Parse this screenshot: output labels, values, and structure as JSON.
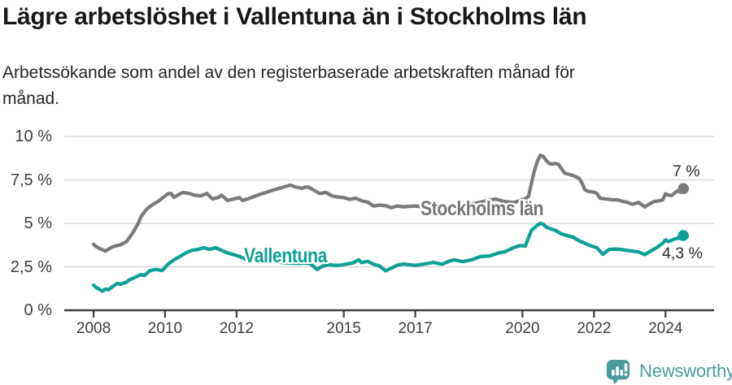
{
  "title": "Lägre arbetslöshet i Vallentuna än i Stockholms län",
  "subtitle": {
    "line1": "Arbetssökande som andel av den registerbaserade arbetskraften månad för",
    "line2": "månad."
  },
  "branding": {
    "logo_text": "Newsworthy",
    "logo_color": "#4a9c9c"
  },
  "chart_data": {
    "type": "line",
    "unit": "%",
    "x_axis": {
      "ticks": [
        2008,
        2010,
        2012,
        2015,
        2017,
        2020,
        2022,
        2024
      ],
      "range": [
        2007.18,
        2025.36
      ]
    },
    "y_axis": {
      "ticks": [
        0,
        2.5,
        5,
        7.5,
        10
      ],
      "tick_labels": [
        "0 %",
        "2,5 %",
        "5 %",
        "7,5 %",
        "10 %"
      ],
      "range": [
        0,
        10
      ],
      "grid": true
    },
    "series": [
      {
        "name": "Stockholms län",
        "color": "#7b7b7b",
        "end_label": "7 %",
        "end_value": 7.0,
        "points": [
          [
            2008.0,
            3.8
          ],
          [
            2008.08,
            3.65
          ],
          [
            2008.17,
            3.55
          ],
          [
            2008.33,
            3.4
          ],
          [
            2008.5,
            3.62
          ],
          [
            2008.58,
            3.68
          ],
          [
            2008.75,
            3.76
          ],
          [
            2008.92,
            3.95
          ],
          [
            2009.08,
            4.4
          ],
          [
            2009.25,
            5.0
          ],
          [
            2009.33,
            5.4
          ],
          [
            2009.5,
            5.85
          ],
          [
            2009.67,
            6.1
          ],
          [
            2009.83,
            6.3
          ],
          [
            2009.92,
            6.45
          ],
          [
            2010.08,
            6.7
          ],
          [
            2010.17,
            6.72
          ],
          [
            2010.25,
            6.5
          ],
          [
            2010.42,
            6.7
          ],
          [
            2010.5,
            6.78
          ],
          [
            2010.67,
            6.72
          ],
          [
            2010.83,
            6.62
          ],
          [
            2010.92,
            6.6
          ],
          [
            2011.0,
            6.58
          ],
          [
            2011.17,
            6.72
          ],
          [
            2011.33,
            6.4
          ],
          [
            2011.5,
            6.5
          ],
          [
            2011.58,
            6.62
          ],
          [
            2011.75,
            6.32
          ],
          [
            2011.92,
            6.4
          ],
          [
            2012.08,
            6.48
          ],
          [
            2012.17,
            6.32
          ],
          [
            2012.33,
            6.42
          ],
          [
            2012.5,
            6.55
          ],
          [
            2012.67,
            6.68
          ],
          [
            2012.83,
            6.78
          ],
          [
            2013.0,
            6.9
          ],
          [
            2013.17,
            7.0
          ],
          [
            2013.33,
            7.1
          ],
          [
            2013.5,
            7.2
          ],
          [
            2013.67,
            7.08
          ],
          [
            2013.83,
            7.02
          ],
          [
            2013.92,
            7.08
          ],
          [
            2014.0,
            7.1
          ],
          [
            2014.17,
            6.9
          ],
          [
            2014.33,
            6.72
          ],
          [
            2014.5,
            6.78
          ],
          [
            2014.67,
            6.58
          ],
          [
            2014.83,
            6.52
          ],
          [
            2015.0,
            6.48
          ],
          [
            2015.17,
            6.38
          ],
          [
            2015.33,
            6.45
          ],
          [
            2015.5,
            6.3
          ],
          [
            2015.67,
            6.22
          ],
          [
            2015.83,
            6.0
          ],
          [
            2016.0,
            6.05
          ],
          [
            2016.17,
            6.02
          ],
          [
            2016.33,
            5.9
          ],
          [
            2016.5,
            6.0
          ],
          [
            2016.67,
            5.95
          ],
          [
            2016.83,
            5.98
          ],
          [
            2017.0,
            6.0
          ],
          [
            2017.33,
            5.92
          ],
          [
            2017.67,
            5.88
          ],
          [
            2018.0,
            5.9
          ],
          [
            2018.33,
            6.0
          ],
          [
            2018.67,
            6.15
          ],
          [
            2019.0,
            6.3
          ],
          [
            2019.25,
            6.4
          ],
          [
            2019.5,
            6.25
          ],
          [
            2019.75,
            6.2
          ],
          [
            2019.92,
            6.3
          ],
          [
            2020.08,
            6.42
          ],
          [
            2020.17,
            6.55
          ],
          [
            2020.25,
            7.3
          ],
          [
            2020.33,
            8.0
          ],
          [
            2020.42,
            8.6
          ],
          [
            2020.5,
            8.92
          ],
          [
            2020.58,
            8.85
          ],
          [
            2020.67,
            8.6
          ],
          [
            2020.75,
            8.45
          ],
          [
            2020.83,
            8.4
          ],
          [
            2020.92,
            8.45
          ],
          [
            2021.0,
            8.4
          ],
          [
            2021.08,
            8.18
          ],
          [
            2021.17,
            7.9
          ],
          [
            2021.33,
            7.8
          ],
          [
            2021.42,
            7.75
          ],
          [
            2021.58,
            7.6
          ],
          [
            2021.67,
            7.3
          ],
          [
            2021.75,
            6.92
          ],
          [
            2021.83,
            6.85
          ],
          [
            2021.92,
            6.82
          ],
          [
            2022.0,
            6.8
          ],
          [
            2022.08,
            6.72
          ],
          [
            2022.17,
            6.45
          ],
          [
            2022.33,
            6.4
          ],
          [
            2022.5,
            6.36
          ],
          [
            2022.67,
            6.35
          ],
          [
            2022.83,
            6.25
          ],
          [
            2022.92,
            6.22
          ],
          [
            2023.0,
            6.15
          ],
          [
            2023.08,
            6.1
          ],
          [
            2023.25,
            6.2
          ],
          [
            2023.42,
            5.95
          ],
          [
            2023.5,
            6.05
          ],
          [
            2023.67,
            6.25
          ],
          [
            2023.83,
            6.3
          ],
          [
            2023.92,
            6.35
          ],
          [
            2024.0,
            6.7
          ],
          [
            2024.08,
            6.62
          ],
          [
            2024.17,
            6.6
          ],
          [
            2024.33,
            6.87
          ],
          [
            2024.42,
            6.8
          ],
          [
            2024.5,
            7.0
          ]
        ]
      },
      {
        "name": "Vallentuna",
        "color": "#0fa195",
        "end_label": "4,3 %",
        "end_value": 4.3,
        "points": [
          [
            2008.0,
            1.45
          ],
          [
            2008.08,
            1.3
          ],
          [
            2008.17,
            1.2
          ],
          [
            2008.25,
            1.1
          ],
          [
            2008.33,
            1.22
          ],
          [
            2008.42,
            1.18
          ],
          [
            2008.5,
            1.32
          ],
          [
            2008.67,
            1.55
          ],
          [
            2008.75,
            1.5
          ],
          [
            2008.92,
            1.62
          ],
          [
            2009.0,
            1.75
          ],
          [
            2009.17,
            1.9
          ],
          [
            2009.33,
            2.05
          ],
          [
            2009.42,
            2.0
          ],
          [
            2009.58,
            2.28
          ],
          [
            2009.75,
            2.35
          ],
          [
            2009.92,
            2.28
          ],
          [
            2010.08,
            2.65
          ],
          [
            2010.25,
            2.9
          ],
          [
            2010.42,
            3.1
          ],
          [
            2010.58,
            3.3
          ],
          [
            2010.75,
            3.45
          ],
          [
            2010.92,
            3.5
          ],
          [
            2011.08,
            3.6
          ],
          [
            2011.25,
            3.5
          ],
          [
            2011.42,
            3.6
          ],
          [
            2011.58,
            3.45
          ],
          [
            2011.75,
            3.3
          ],
          [
            2011.92,
            3.2
          ],
          [
            2012.08,
            3.1
          ],
          [
            2012.25,
            2.95
          ],
          [
            2012.42,
            3.0
          ],
          [
            2012.58,
            2.85
          ],
          [
            2012.75,
            2.9
          ],
          [
            2012.92,
            2.82
          ],
          [
            2013.08,
            2.8
          ],
          [
            2013.25,
            2.75
          ],
          [
            2013.5,
            2.72
          ],
          [
            2013.75,
            2.7
          ],
          [
            2013.92,
            2.72
          ],
          [
            2014.08,
            2.66
          ],
          [
            2014.25,
            2.35
          ],
          [
            2014.42,
            2.55
          ],
          [
            2014.58,
            2.62
          ],
          [
            2014.75,
            2.58
          ],
          [
            2014.92,
            2.6
          ],
          [
            2015.08,
            2.66
          ],
          [
            2015.25,
            2.72
          ],
          [
            2015.42,
            2.9
          ],
          [
            2015.5,
            2.74
          ],
          [
            2015.67,
            2.82
          ],
          [
            2015.83,
            2.65
          ],
          [
            2016.0,
            2.55
          ],
          [
            2016.17,
            2.27
          ],
          [
            2016.33,
            2.42
          ],
          [
            2016.5,
            2.6
          ],
          [
            2016.67,
            2.66
          ],
          [
            2016.83,
            2.62
          ],
          [
            2017.0,
            2.58
          ],
          [
            2017.25,
            2.66
          ],
          [
            2017.5,
            2.75
          ],
          [
            2017.75,
            2.65
          ],
          [
            2017.92,
            2.8
          ],
          [
            2018.08,
            2.9
          ],
          [
            2018.33,
            2.8
          ],
          [
            2018.58,
            2.9
          ],
          [
            2018.83,
            3.1
          ],
          [
            2019.08,
            3.12
          ],
          [
            2019.33,
            3.3
          ],
          [
            2019.5,
            3.36
          ],
          [
            2019.75,
            3.6
          ],
          [
            2019.92,
            3.72
          ],
          [
            2020.08,
            3.7
          ],
          [
            2020.25,
            4.6
          ],
          [
            2020.42,
            4.9
          ],
          [
            2020.5,
            5.0
          ],
          [
            2020.58,
            4.95
          ],
          [
            2020.67,
            4.78
          ],
          [
            2020.83,
            4.65
          ],
          [
            2020.92,
            4.6
          ],
          [
            2021.08,
            4.4
          ],
          [
            2021.25,
            4.3
          ],
          [
            2021.42,
            4.2
          ],
          [
            2021.58,
            4.0
          ],
          [
            2021.75,
            3.85
          ],
          [
            2021.92,
            3.7
          ],
          [
            2022.08,
            3.6
          ],
          [
            2022.25,
            3.22
          ],
          [
            2022.42,
            3.5
          ],
          [
            2022.58,
            3.52
          ],
          [
            2022.75,
            3.5
          ],
          [
            2022.92,
            3.45
          ],
          [
            2023.08,
            3.4
          ],
          [
            2023.25,
            3.35
          ],
          [
            2023.42,
            3.2
          ],
          [
            2023.58,
            3.4
          ],
          [
            2023.75,
            3.6
          ],
          [
            2023.92,
            3.85
          ],
          [
            2024.0,
            4.05
          ],
          [
            2024.08,
            3.95
          ],
          [
            2024.25,
            4.1
          ],
          [
            2024.33,
            4.15
          ],
          [
            2024.42,
            4.12
          ],
          [
            2024.5,
            4.3
          ]
        ]
      }
    ]
  }
}
